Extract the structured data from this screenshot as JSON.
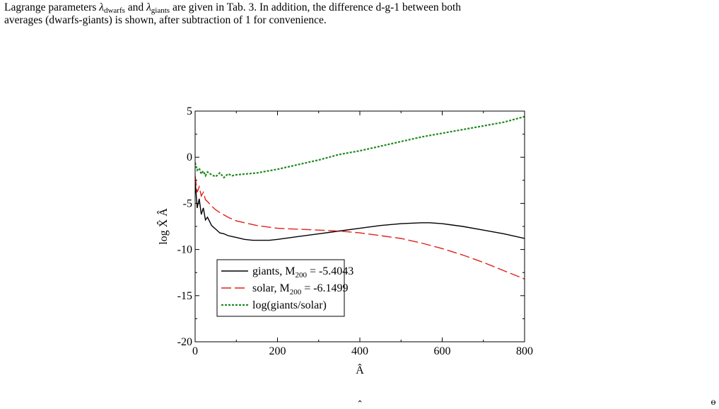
{
  "paragraph": {
    "l1_a": "Lagrange parameters ",
    "lam": "λ",
    "sub_dwarfs": "dwarfs",
    "l1_and": " and ",
    "sub_giants": "giants",
    "l1_b": " are given in Tab. 3. In addition, the difference d-g-1 between both",
    "line2": "averages (dwarfs-giants) is shown, after subtraction of 1 for convenience."
  },
  "footer": {
    "hat_glyph": "ˆ",
    "corner_glyph": "ɵ"
  },
  "chart_data": {
    "type": "line",
    "xlabel": "Â",
    "ylabel": "log X̂ Â",
    "xlim": [
      0,
      800
    ],
    "ylim": [
      -20,
      5
    ],
    "xticks": [
      0,
      200,
      400,
      600,
      800
    ],
    "yticks": [
      5,
      0,
      -5,
      -10,
      -15,
      -20
    ],
    "grid": false,
    "legend_position": "lower-left",
    "series": [
      {
        "name": "giants, M",
        "name_sub": "200",
        "name_tail": " = -5.4043",
        "color": "#000000",
        "style": "solid",
        "x": [
          0,
          5,
          10,
          15,
          20,
          25,
          30,
          40,
          50,
          60,
          70,
          80,
          90,
          100,
          120,
          140,
          160,
          180,
          200,
          250,
          300,
          350,
          400,
          450,
          500,
          550,
          570,
          600,
          650,
          700,
          750,
          800
        ],
        "y": [
          -2.5,
          -5.5,
          -4.5,
          -6.2,
          -5.5,
          -6.8,
          -6.5,
          -7.4,
          -7.8,
          -8.2,
          -8.3,
          -8.5,
          -8.6,
          -8.7,
          -8.9,
          -9.0,
          -9.0,
          -9.0,
          -8.9,
          -8.6,
          -8.3,
          -8.0,
          -7.7,
          -7.4,
          -7.2,
          -7.1,
          -7.1,
          -7.2,
          -7.5,
          -7.9,
          -8.3,
          -8.8
        ]
      },
      {
        "name": "solar, M",
        "name_sub": "200",
        "name_tail": " = -6.1499",
        "color": "#e0201b",
        "style": "dashed",
        "x": [
          0,
          5,
          10,
          15,
          20,
          25,
          30,
          40,
          50,
          60,
          80,
          100,
          150,
          200,
          250,
          300,
          350,
          400,
          450,
          500,
          550,
          600,
          650,
          700,
          750,
          800
        ],
        "y": [
          -2.0,
          -3.8,
          -3.2,
          -4.2,
          -3.8,
          -4.6,
          -4.8,
          -5.3,
          -5.7,
          -6.0,
          -6.5,
          -6.9,
          -7.4,
          -7.7,
          -7.8,
          -7.9,
          -8.0,
          -8.2,
          -8.5,
          -8.8,
          -9.3,
          -9.9,
          -10.6,
          -11.4,
          -12.3,
          -13.2
        ]
      },
      {
        "name": "log(giants/solar)",
        "color": "#1e8a1e",
        "style": "dotted",
        "x": [
          0,
          5,
          10,
          15,
          20,
          25,
          30,
          40,
          50,
          60,
          70,
          80,
          90,
          100,
          150,
          200,
          250,
          300,
          350,
          400,
          450,
          500,
          550,
          600,
          650,
          700,
          750,
          800
        ],
        "y": [
          -0.6,
          -1.4,
          -1.2,
          -1.8,
          -1.5,
          -2.0,
          -1.6,
          -1.9,
          -2.1,
          -1.7,
          -2.2,
          -1.8,
          -2.0,
          -1.9,
          -1.7,
          -1.3,
          -0.8,
          -0.3,
          0.3,
          0.7,
          1.2,
          1.7,
          2.2,
          2.6,
          3.0,
          3.4,
          3.8,
          4.4
        ]
      }
    ]
  }
}
